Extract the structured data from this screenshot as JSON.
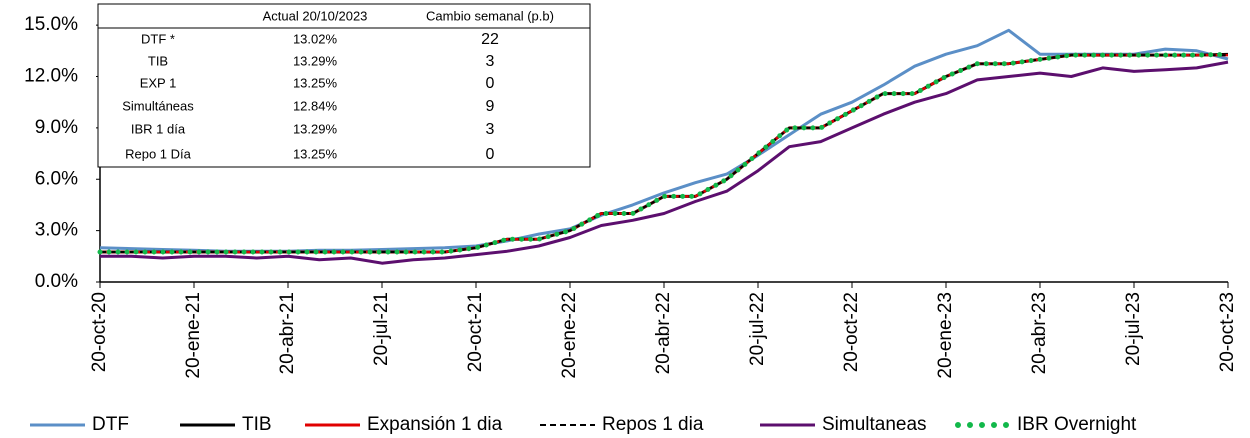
{
  "chart_data": {
    "type": "line",
    "categories": [
      "20-oct-20",
      null,
      null,
      "20-ene-21",
      null,
      null,
      "20-abr-21",
      null,
      null,
      "20-jul-21",
      null,
      null,
      "20-oct-21",
      null,
      null,
      "20-ene-22",
      null,
      null,
      "20-abr-22",
      null,
      null,
      "20-jul-22",
      null,
      null,
      "20-oct-22",
      null,
      null,
      "20-ene-23",
      null,
      null,
      "20-abr-23",
      null,
      null,
      "20-jul-23",
      null,
      null,
      "20-oct-23"
    ],
    "series": [
      {
        "name": "DTF",
        "color": "#5b8fc7",
        "values": [
          2.0,
          1.95,
          1.9,
          1.85,
          1.8,
          1.8,
          1.8,
          1.85,
          1.85,
          1.9,
          1.95,
          2.0,
          2.1,
          2.4,
          2.8,
          3.1,
          3.9,
          4.5,
          5.2,
          5.8,
          6.3,
          7.4,
          8.6,
          9.8,
          10.5,
          11.5,
          12.6,
          13.3,
          13.8,
          14.7,
          13.3,
          13.3,
          13.3,
          13.3,
          13.6,
          13.5,
          13.02
        ]
      },
      {
        "name": "TIB",
        "color": "#000000",
        "values": [
          1.75,
          1.75,
          1.75,
          1.75,
          1.75,
          1.75,
          1.75,
          1.75,
          1.75,
          1.75,
          1.75,
          1.75,
          2.0,
          2.5,
          2.5,
          3.0,
          4.0,
          4.0,
          5.0,
          5.0,
          6.0,
          7.5,
          9.0,
          9.0,
          10.0,
          11.0,
          11.0,
          12.0,
          12.75,
          12.75,
          13.0,
          13.25,
          13.25,
          13.25,
          13.25,
          13.25,
          13.29
        ]
      },
      {
        "name": "Expansión 1 dia",
        "color": "#e00000",
        "values": [
          1.75,
          1.75,
          1.75,
          1.75,
          1.75,
          1.75,
          1.75,
          1.75,
          1.75,
          1.75,
          1.75,
          1.75,
          2.0,
          2.5,
          2.5,
          3.0,
          4.0,
          4.0,
          5.0,
          5.0,
          6.0,
          7.5,
          9.0,
          9.0,
          10.0,
          11.0,
          11.0,
          12.0,
          12.75,
          12.75,
          13.0,
          13.25,
          13.25,
          13.25,
          13.25,
          13.25,
          13.25
        ]
      },
      {
        "name": "Repos 1 dia",
        "color": "#000000",
        "dash": true,
        "values": [
          1.75,
          1.75,
          1.75,
          1.75,
          1.75,
          1.75,
          1.75,
          1.75,
          1.75,
          1.75,
          1.75,
          1.75,
          2.0,
          2.5,
          2.5,
          3.0,
          4.0,
          4.0,
          5.0,
          5.0,
          6.0,
          7.5,
          9.0,
          9.0,
          10.0,
          11.0,
          11.0,
          12.0,
          12.75,
          12.75,
          13.0,
          13.25,
          13.25,
          13.25,
          13.25,
          13.25,
          13.25
        ]
      },
      {
        "name": "Simultaneas",
        "color": "#5c0f6e",
        "values": [
          1.5,
          1.5,
          1.4,
          1.5,
          1.5,
          1.4,
          1.5,
          1.3,
          1.4,
          1.1,
          1.3,
          1.4,
          1.6,
          1.8,
          2.1,
          2.6,
          3.3,
          3.6,
          4.0,
          4.7,
          5.3,
          6.5,
          7.9,
          8.2,
          9.0,
          9.8,
          10.5,
          11.0,
          11.8,
          12.0,
          12.2,
          12.0,
          12.5,
          12.3,
          12.4,
          12.5,
          12.84
        ]
      },
      {
        "name": "IBR Overnight",
        "color": "#12b84a",
        "dotted": true,
        "values": [
          1.75,
          1.75,
          1.75,
          1.75,
          1.75,
          1.75,
          1.75,
          1.75,
          1.75,
          1.75,
          1.75,
          1.75,
          2.0,
          2.5,
          2.5,
          3.0,
          4.0,
          4.0,
          5.0,
          5.0,
          6.0,
          7.5,
          9.0,
          9.0,
          10.0,
          11.0,
          11.0,
          12.0,
          12.75,
          12.75,
          13.0,
          13.25,
          13.25,
          13.25,
          13.25,
          13.25,
          13.29
        ]
      }
    ],
    "ylim": [
      0,
      16
    ],
    "yticks": [
      {
        "value": 0,
        "label": "0.0%"
      },
      {
        "value": 3,
        "label": "3.0%"
      },
      {
        "value": 6,
        "label": "6.0%"
      },
      {
        "value": 9,
        "label": "9.0%"
      },
      {
        "value": 12,
        "label": "12.0%"
      },
      {
        "value": 15,
        "label": "15.0%"
      }
    ],
    "legend": "bottom",
    "table": {
      "columns": [
        "Actual 20/10/2023",
        "Cambio semanal (p.b)"
      ],
      "rows": [
        {
          "name": "DTF *",
          "actual": "13.02%",
          "change": 22
        },
        {
          "name": "TIB",
          "actual": "13.29%",
          "change": 3
        },
        {
          "name": "EXP 1",
          "actual": "13.25%",
          "change": 0
        },
        {
          "name": "Simultáneas",
          "actual": "12.84%",
          "change": 9
        },
        {
          "name": "IBR 1 día",
          "actual": "13.29%",
          "change": 3
        },
        {
          "name": "Repo 1 Día",
          "actual": "13.25%",
          "change": 0
        }
      ]
    }
  }
}
